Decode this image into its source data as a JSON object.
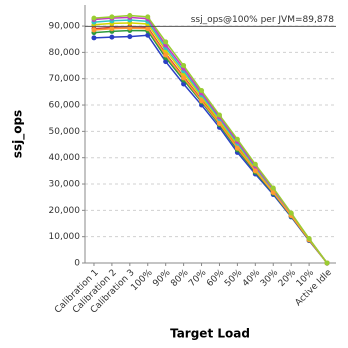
{
  "chart_data": {
    "type": "line",
    "x_label": "Target Load",
    "y_label": "ssj_ops",
    "categories": [
      "Calibration 1",
      "Calibration 2",
      "Calibration 3",
      "100%",
      "90%",
      "80%",
      "70%",
      "60%",
      "50%",
      "40%",
      "30%",
      "20%",
      "10%",
      "Active Idle"
    ],
    "series": [
      {
        "color": "#2b3fc4",
        "values": [
          85500,
          85800,
          86000,
          86500,
          76500,
          68000,
          60000,
          51500,
          42000,
          33800,
          26000,
          17500,
          8500,
          0
        ]
      },
      {
        "color": "#2e9a3e",
        "values": [
          87500,
          88000,
          88300,
          88200,
          78000,
          69500,
          61200,
          52500,
          43000,
          34500,
          26500,
          17800,
          8700,
          0
        ]
      },
      {
        "color": "#d23a3a",
        "values": [
          89000,
          89500,
          89800,
          89500,
          79500,
          70800,
          62000,
          53300,
          44000,
          35200,
          27000,
          18100,
          8900,
          0
        ]
      },
      {
        "color": "#d6d600",
        "values": [
          90500,
          91000,
          91200,
          90800,
          80800,
          72000,
          63000,
          54000,
          44800,
          35800,
          27400,
          18400,
          9000,
          0
        ]
      },
      {
        "color": "#33c4c4",
        "values": [
          91500,
          92000,
          92300,
          91800,
          81800,
          73000,
          63800,
          54800,
          45500,
          36300,
          27800,
          18600,
          9100,
          0
        ]
      },
      {
        "color": "#c43ac4",
        "values": [
          92500,
          93000,
          93300,
          92800,
          82800,
          74000,
          64600,
          55500,
          46200,
          36800,
          28100,
          18800,
          9200,
          0
        ]
      },
      {
        "color": "#ff9933",
        "values": [
          88500,
          89000,
          89200,
          89000,
          79000,
          70300,
          61600,
          53000,
          43600,
          35000,
          26800,
          18000,
          8800,
          0
        ]
      },
      {
        "color": "#9acd32",
        "values": [
          93000,
          93500,
          94000,
          93500,
          84000,
          75000,
          65500,
          56200,
          47000,
          37500,
          28500,
          19000,
          9300,
          0
        ]
      }
    ],
    "ylim": [
      0,
      98000
    ],
    "yticks": [
      0,
      {
        "value": 10000,
        "label": "10,000"
      },
      {
        "value": 20000,
        "label": "20,000"
      },
      {
        "value": 30000,
        "label": "30,000"
      },
      {
        "value": 40000,
        "label": "40,000"
      },
      {
        "value": 50000,
        "label": "50,000"
      },
      {
        "value": 60000,
        "label": "60,000"
      },
      {
        "value": 70000,
        "label": "70,000"
      },
      {
        "value": 80000,
        "label": "80,000"
      },
      {
        "value": 90000,
        "label": "90,000"
      }
    ],
    "grid": true,
    "reference_line": {
      "value": 89878,
      "label": "ssj_ops@100% per JVM=89,878"
    }
  }
}
